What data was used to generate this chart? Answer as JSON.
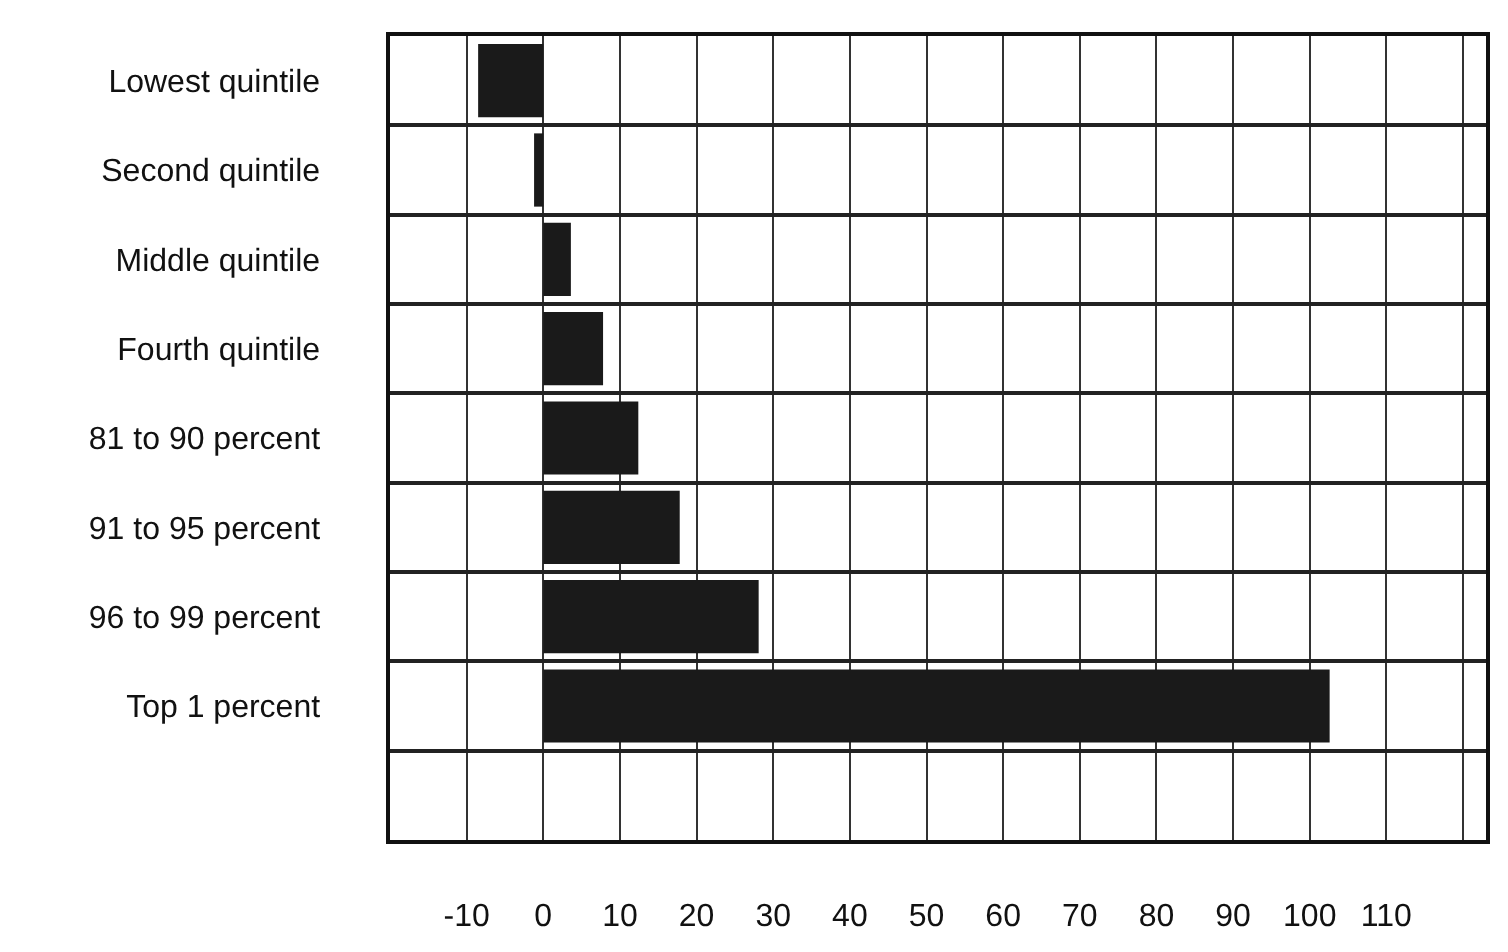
{
  "chart_data": {
    "type": "bar",
    "orientation": "horizontal",
    "categories": [
      "Lowest quintile",
      "Second quintile",
      "Middle quintile",
      "Fourth quintile",
      "81 to 90 percent",
      "91 to 95 percent",
      "96 to 99 percent",
      "Top 1 percent",
      null
    ],
    "values": [
      -8.5,
      -1.2,
      3.6,
      7.8,
      12.4,
      17.8,
      28.1,
      102.6,
      null
    ],
    "color": "#1a1a1a",
    "xlim": [
      -20,
      123
    ],
    "xticks": [
      -10,
      0,
      10,
      20,
      30,
      40,
      50,
      60,
      70,
      80,
      90,
      100,
      110,
      {
        "value": 120,
        "label": null
      }
    ],
    "grid": true
  }
}
